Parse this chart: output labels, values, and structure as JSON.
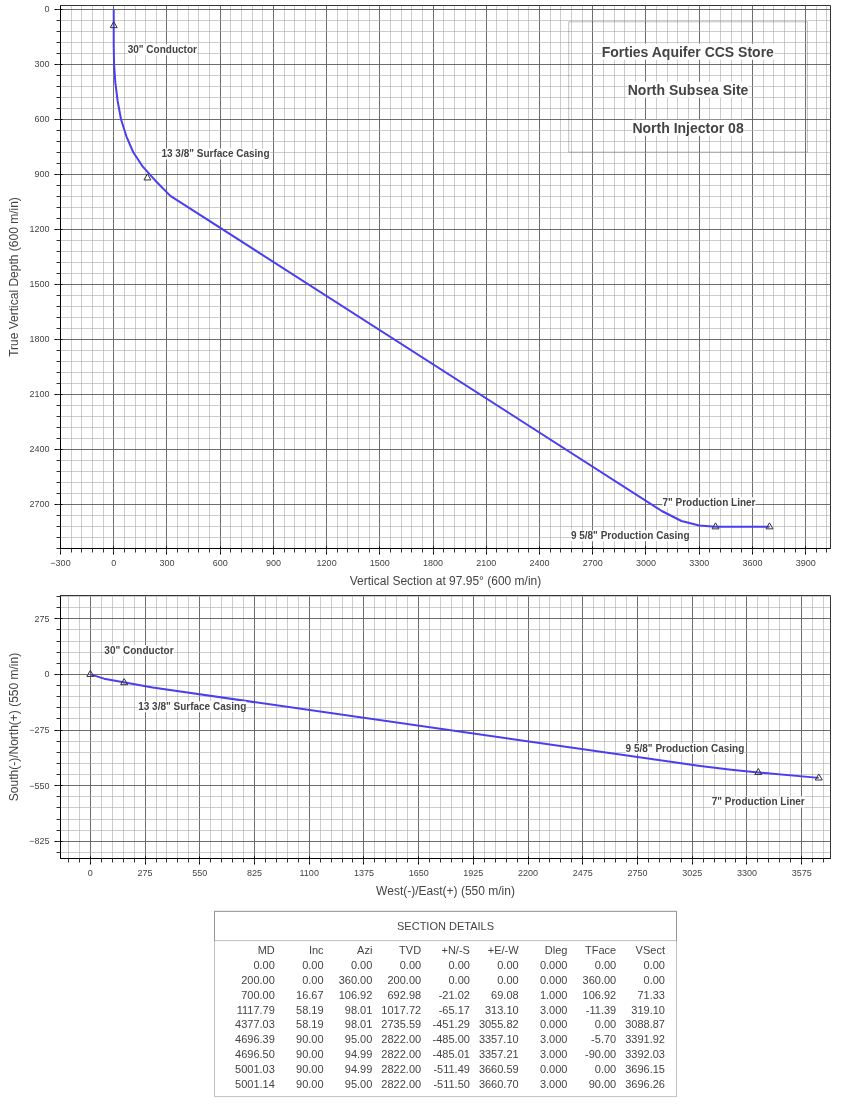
{
  "chart_data": [
    {
      "type": "line",
      "title": "Forties Aquifer CCS Store",
      "subtitle": "North Subsea Site",
      "xlabel": "Vertical Section at 97.95° (600 m/in)",
      "ylabel": "True Vertical Depth (600 m/in)",
      "xlim": [
        -300,
        4040
      ],
      "ylim": [
        2940,
        -20
      ],
      "xticks": [
        -300,
        0,
        300,
        600,
        900,
        1200,
        1500,
        1800,
        2100,
        2400,
        2700,
        3000,
        3300,
        3600,
        3900
      ],
      "yticks": [
        0,
        300,
        600,
        900,
        1200,
        1500,
        1800,
        2100,
        2400,
        2700
      ],
      "grid": true,
      "series": [
        {
          "color": "#4a3ff0",
          "x": [
            0,
            0,
            2,
            9,
            22,
            41,
            71.33,
            110,
            165,
            235,
            319.1,
            3088.87,
            3200,
            3300,
            3391.92,
            3392.03,
            3696.15,
            3696.26
          ],
          "values": [
            0,
            200,
            300,
            400,
            500,
            600,
            692.98,
            780,
            860,
            935,
            1017.72,
            2735.59,
            2790,
            2815,
            2822,
            2822,
            2822,
            2822
          ]
        }
      ],
      "annotations": [
        "North Injector 08",
        {
          "text": "30\" Conductor",
          "x": 0,
          "y": 90
        },
        {
          "text": "13 3/8\" Surface Casing",
          "x": 190,
          "y": 920
        },
        {
          "text": "9 5/8\" Production Casing",
          "x": 3392,
          "y": 2822
        },
        {
          "text": "7\" Production Liner",
          "x": 3696,
          "y": 2822
        }
      ]
    },
    {
      "type": "line",
      "xlabel": "West(-)/East(+) (550 m/in)",
      "ylabel": "South(-)/North(+) (550 m/in)",
      "xlim": [
        -150,
        3720
      ],
      "ylim": [
        -910,
        390
      ],
      "xticks": [
        0,
        275,
        550,
        825,
        1100,
        1375,
        1650,
        1925,
        2200,
        2475,
        2750,
        3025,
        3300,
        3575
      ],
      "yticks": [
        -825,
        -550,
        -275,
        0,
        275
      ],
      "grid": true,
      "series": [
        {
          "color": "#4a3ff0",
          "x": [
            0,
            0,
            69.08,
            313.1,
            3055.82,
            3210,
            3357.1,
            3357.21,
            3660.59,
            3660.7
          ],
          "values": [
            0,
            0,
            -21.02,
            -65.17,
            -451.29,
            -470,
            -485.0,
            -485.01,
            -511.49,
            -511.5
          ]
        }
      ],
      "annotations": [
        {
          "text": "30\" Conductor",
          "x": 0,
          "y": 0
        },
        {
          "text": "13 3/8\" Surface Casing",
          "x": 170,
          "y": -41
        },
        {
          "text": "9 5/8\" Production Casing",
          "x": 3357,
          "y": -485
        },
        {
          "text": "7\" Production Liner",
          "x": 3661,
          "y": -512
        }
      ]
    },
    {
      "type": "other",
      "title": "SECTION DETAILS",
      "categories": [
        "MD",
        "Inc",
        "Azi",
        "TVD",
        "+N/-S",
        "+E/-W",
        "Dleg",
        "TFace",
        "VSect"
      ],
      "cell_labels": [
        [
          "0.00",
          "0.00",
          "0.00",
          "0.00",
          "0.00",
          "0.00",
          "0.000",
          "0.00",
          "0.00"
        ],
        [
          "200.00",
          "0.00",
          "360.00",
          "200.00",
          "0.00",
          "0.00",
          "0.000",
          "360.00",
          "0.00"
        ],
        [
          "700.00",
          "16.67",
          "106.92",
          "692.98",
          "-21.02",
          "69.08",
          "1.000",
          "106.92",
          "71.33"
        ],
        [
          "1117.79",
          "58.19",
          "98.01",
          "1017.72",
          "-65.17",
          "313.10",
          "3.000",
          "-11.39",
          "319.10"
        ],
        [
          "4377.03",
          "58.19",
          "98.01",
          "2735.59",
          "-451.29",
          "3055.82",
          "0.000",
          "0.00",
          "3088.87"
        ],
        [
          "4696.39",
          "90.00",
          "95.00",
          "2822.00",
          "-485.00",
          "3357.10",
          "3.000",
          "-5.70",
          "3391.92"
        ],
        [
          "4696.50",
          "90.00",
          "94.99",
          "2822.00",
          "-485.01",
          "3357.21",
          "3.000",
          "-90.00",
          "3392.03"
        ],
        [
          "5001.03",
          "90.00",
          "94.99",
          "2822.00",
          "-511.49",
          "3660.59",
          "0.000",
          "0.00",
          "3696.15"
        ],
        [
          "5001.14",
          "90.00",
          "95.00",
          "2822.00",
          "-511.50",
          "3660.70",
          "3.000",
          "90.00",
          "3696.26"
        ]
      ]
    }
  ]
}
